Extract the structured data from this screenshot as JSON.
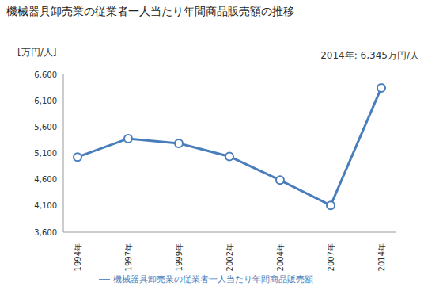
{
  "chart_data": {
    "type": "line",
    "title": "機械器具卸売業の従業者一人当たり年間商品販売額の推移",
    "y_label": "[万円/人]",
    "annotation": "2014年: 6,345万円/人",
    "categories": [
      "1994年",
      "1997年",
      "1999年",
      "2002年",
      "2004年",
      "2007年",
      "2014年"
    ],
    "series": [
      {
        "name": "機械器具卸売業の従業者一人当たり年間商品販売額",
        "color": "#4a7ebb",
        "marker": "circle",
        "values": [
          5030,
          5380,
          5290,
          5040,
          4590,
          4110,
          6345
        ]
      }
    ],
    "ylim": [
      3600,
      6600
    ],
    "yticks": [
      {
        "value": 3600,
        "label": "3,600"
      },
      {
        "value": 4100,
        "label": "4,100"
      },
      {
        "value": 4600,
        "label": "4,600"
      },
      {
        "value": 5100,
        "label": "5,100"
      },
      {
        "value": 5600,
        "label": "5,600"
      },
      {
        "value": 6100,
        "label": "6,100"
      },
      {
        "value": 6600,
        "label": "6,600"
      }
    ],
    "grid": false,
    "legend": "bottom"
  }
}
